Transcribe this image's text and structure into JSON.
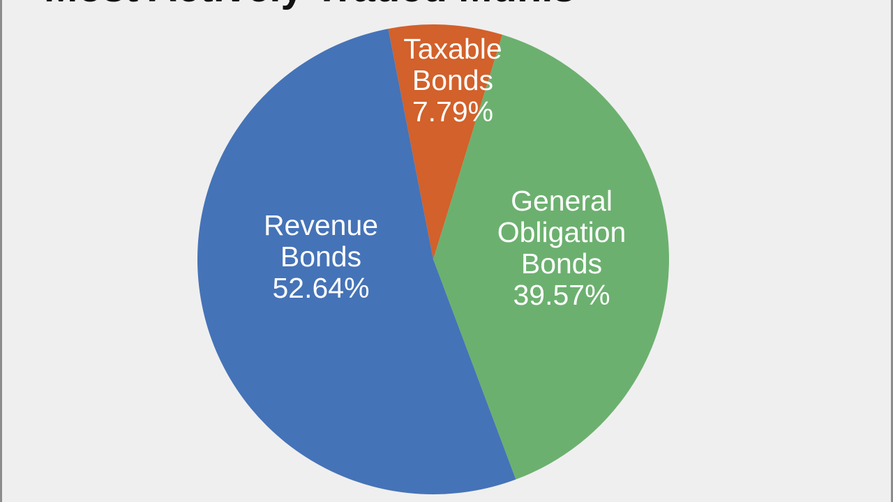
{
  "chart_data": {
    "type": "pie",
    "title": "Most Actively Traded Munis",
    "slices": [
      {
        "lines": [
          "Taxable",
          "Bonds"
        ],
        "percent_label": "7.79%",
        "value": 7.79,
        "color": "#d2612b"
      },
      {
        "lines": [
          "General",
          "Obligation",
          "Bonds"
        ],
        "percent_label": "39.57%",
        "value": 39.57,
        "color": "#6cb06f"
      },
      {
        "lines": [
          "Revenue",
          "Bonds"
        ],
        "percent_label": "52.64%",
        "value": 52.64,
        "color": "#4573b7"
      }
    ]
  }
}
